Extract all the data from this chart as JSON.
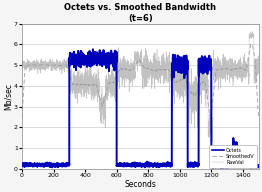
{
  "title": "Octets vs. Smoothed Bandwidth",
  "subtitle": "(t=6)",
  "xlabel": "Seconds",
  "ylabel": "Mb/sec",
  "xlim": [
    0,
    1500
  ],
  "ylim": [
    0,
    7
  ],
  "yticks": [
    0,
    1,
    2,
    3,
    4,
    5,
    6,
    7
  ],
  "xticks": [
    0,
    200,
    400,
    600,
    800,
    1000,
    1200,
    1400
  ],
  "legend_labels": [
    "Octets",
    "SmoothedV",
    "RawVal"
  ],
  "octets_color": "#0000bb",
  "smoothed_color": "#999999",
  "raw_color": "#bbbbbb",
  "bg_color": "#f5f5f5",
  "plot_bg": "#ffffff"
}
